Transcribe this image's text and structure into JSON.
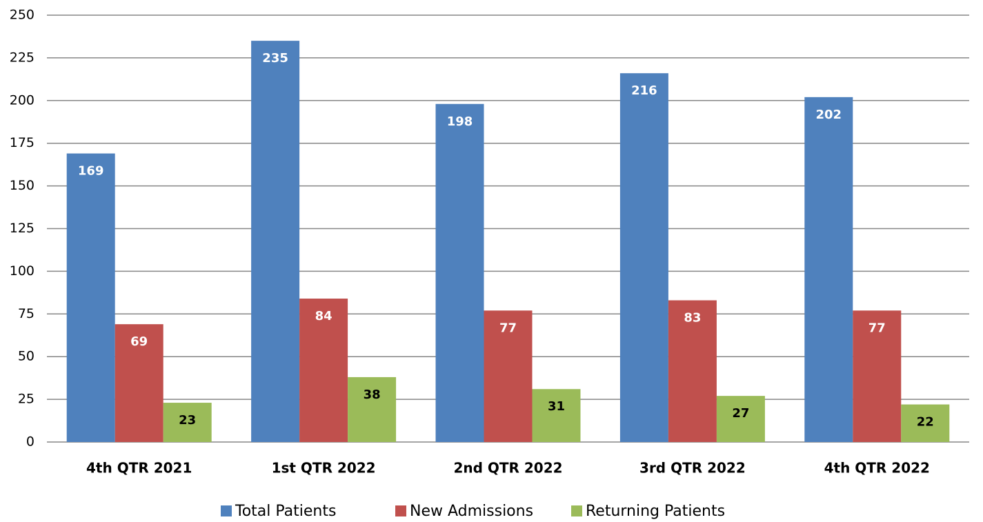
{
  "chart_data": {
    "type": "bar",
    "categories": [
      "4th QTR 2021",
      "1st QTR 2022",
      "2nd QTR 2022",
      "3rd QTR 2022",
      "4th QTR 2022"
    ],
    "series": [
      {
        "name": "Total Patients",
        "color": "#4f81bd",
        "label_color": "#ffffff",
        "values": [
          169,
          235,
          198,
          216,
          202
        ]
      },
      {
        "name": "New Admissions",
        "color": "#c0504d",
        "label_color": "#ffffff",
        "values": [
          69,
          84,
          77,
          83,
          77
        ]
      },
      {
        "name": "Returning Patients",
        "color": "#9bbb59",
        "label_color": "#000000",
        "values": [
          23,
          38,
          31,
          27,
          22
        ]
      }
    ],
    "ylim": [
      0,
      250
    ],
    "yticks": [
      0,
      25,
      50,
      75,
      100,
      125,
      150,
      175,
      200,
      225,
      250
    ],
    "grid": true,
    "legend": "bottom"
  }
}
